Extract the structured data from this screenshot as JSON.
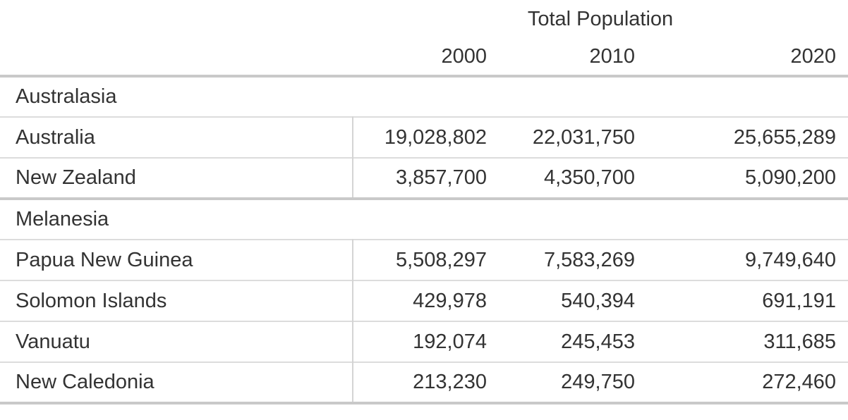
{
  "table": {
    "spanner_label": "Total Population",
    "years": [
      "2000",
      "2010",
      "2020"
    ],
    "sections": [
      {
        "label": "Australasia",
        "rows": [
          {
            "label": "Australia",
            "values": [
              "19,028,802",
              "22,031,750",
              "25,655,289"
            ]
          },
          {
            "label": "New Zealand",
            "values": [
              "3,857,700",
              "4,350,700",
              "5,090,200"
            ]
          }
        ]
      },
      {
        "label": "Melanesia",
        "rows": [
          {
            "label": "Papua New Guinea",
            "values": [
              "5,508,297",
              "7,583,269",
              "9,749,640"
            ]
          },
          {
            "label": "Solomon Islands",
            "values": [
              "429,978",
              "540,394",
              "691,191"
            ]
          },
          {
            "label": "Vanuatu",
            "values": [
              "192,074",
              "245,453",
              "311,685"
            ]
          },
          {
            "label": "New Caledonia",
            "values": [
              "213,230",
              "249,750",
              "272,460"
            ]
          }
        ]
      }
    ],
    "colors": {
      "text": "#333333",
      "border_thick": "#c9c9c9",
      "border_thin": "#dcdcdc",
      "border_vertical": "#d4d4d4",
      "background": "#ffffff"
    }
  },
  "chart_data": {
    "type": "table",
    "title": "Total Population",
    "columns": [
      "2000",
      "2010",
      "2020"
    ],
    "groups": [
      {
        "name": "Australasia",
        "rows": [
          {
            "name": "Australia",
            "values": [
              19028802,
              22031750,
              25655289
            ]
          },
          {
            "name": "New Zealand",
            "values": [
              3857700,
              4350700,
              5090200
            ]
          }
        ]
      },
      {
        "name": "Melanesia",
        "rows": [
          {
            "name": "Papua New Guinea",
            "values": [
              5508297,
              7583269,
              9749640
            ]
          },
          {
            "name": "Solomon Islands",
            "values": [
              429978,
              540394,
              691191
            ]
          },
          {
            "name": "Vanuatu",
            "values": [
              192074,
              245453,
              311685
            ]
          },
          {
            "name": "New Caledonia",
            "values": [
              213230,
              249750,
              272460
            ]
          }
        ]
      }
    ],
    "layout": {
      "grouped_rows": true,
      "value_alignment": "right",
      "header_span": "columns 2-4"
    }
  }
}
